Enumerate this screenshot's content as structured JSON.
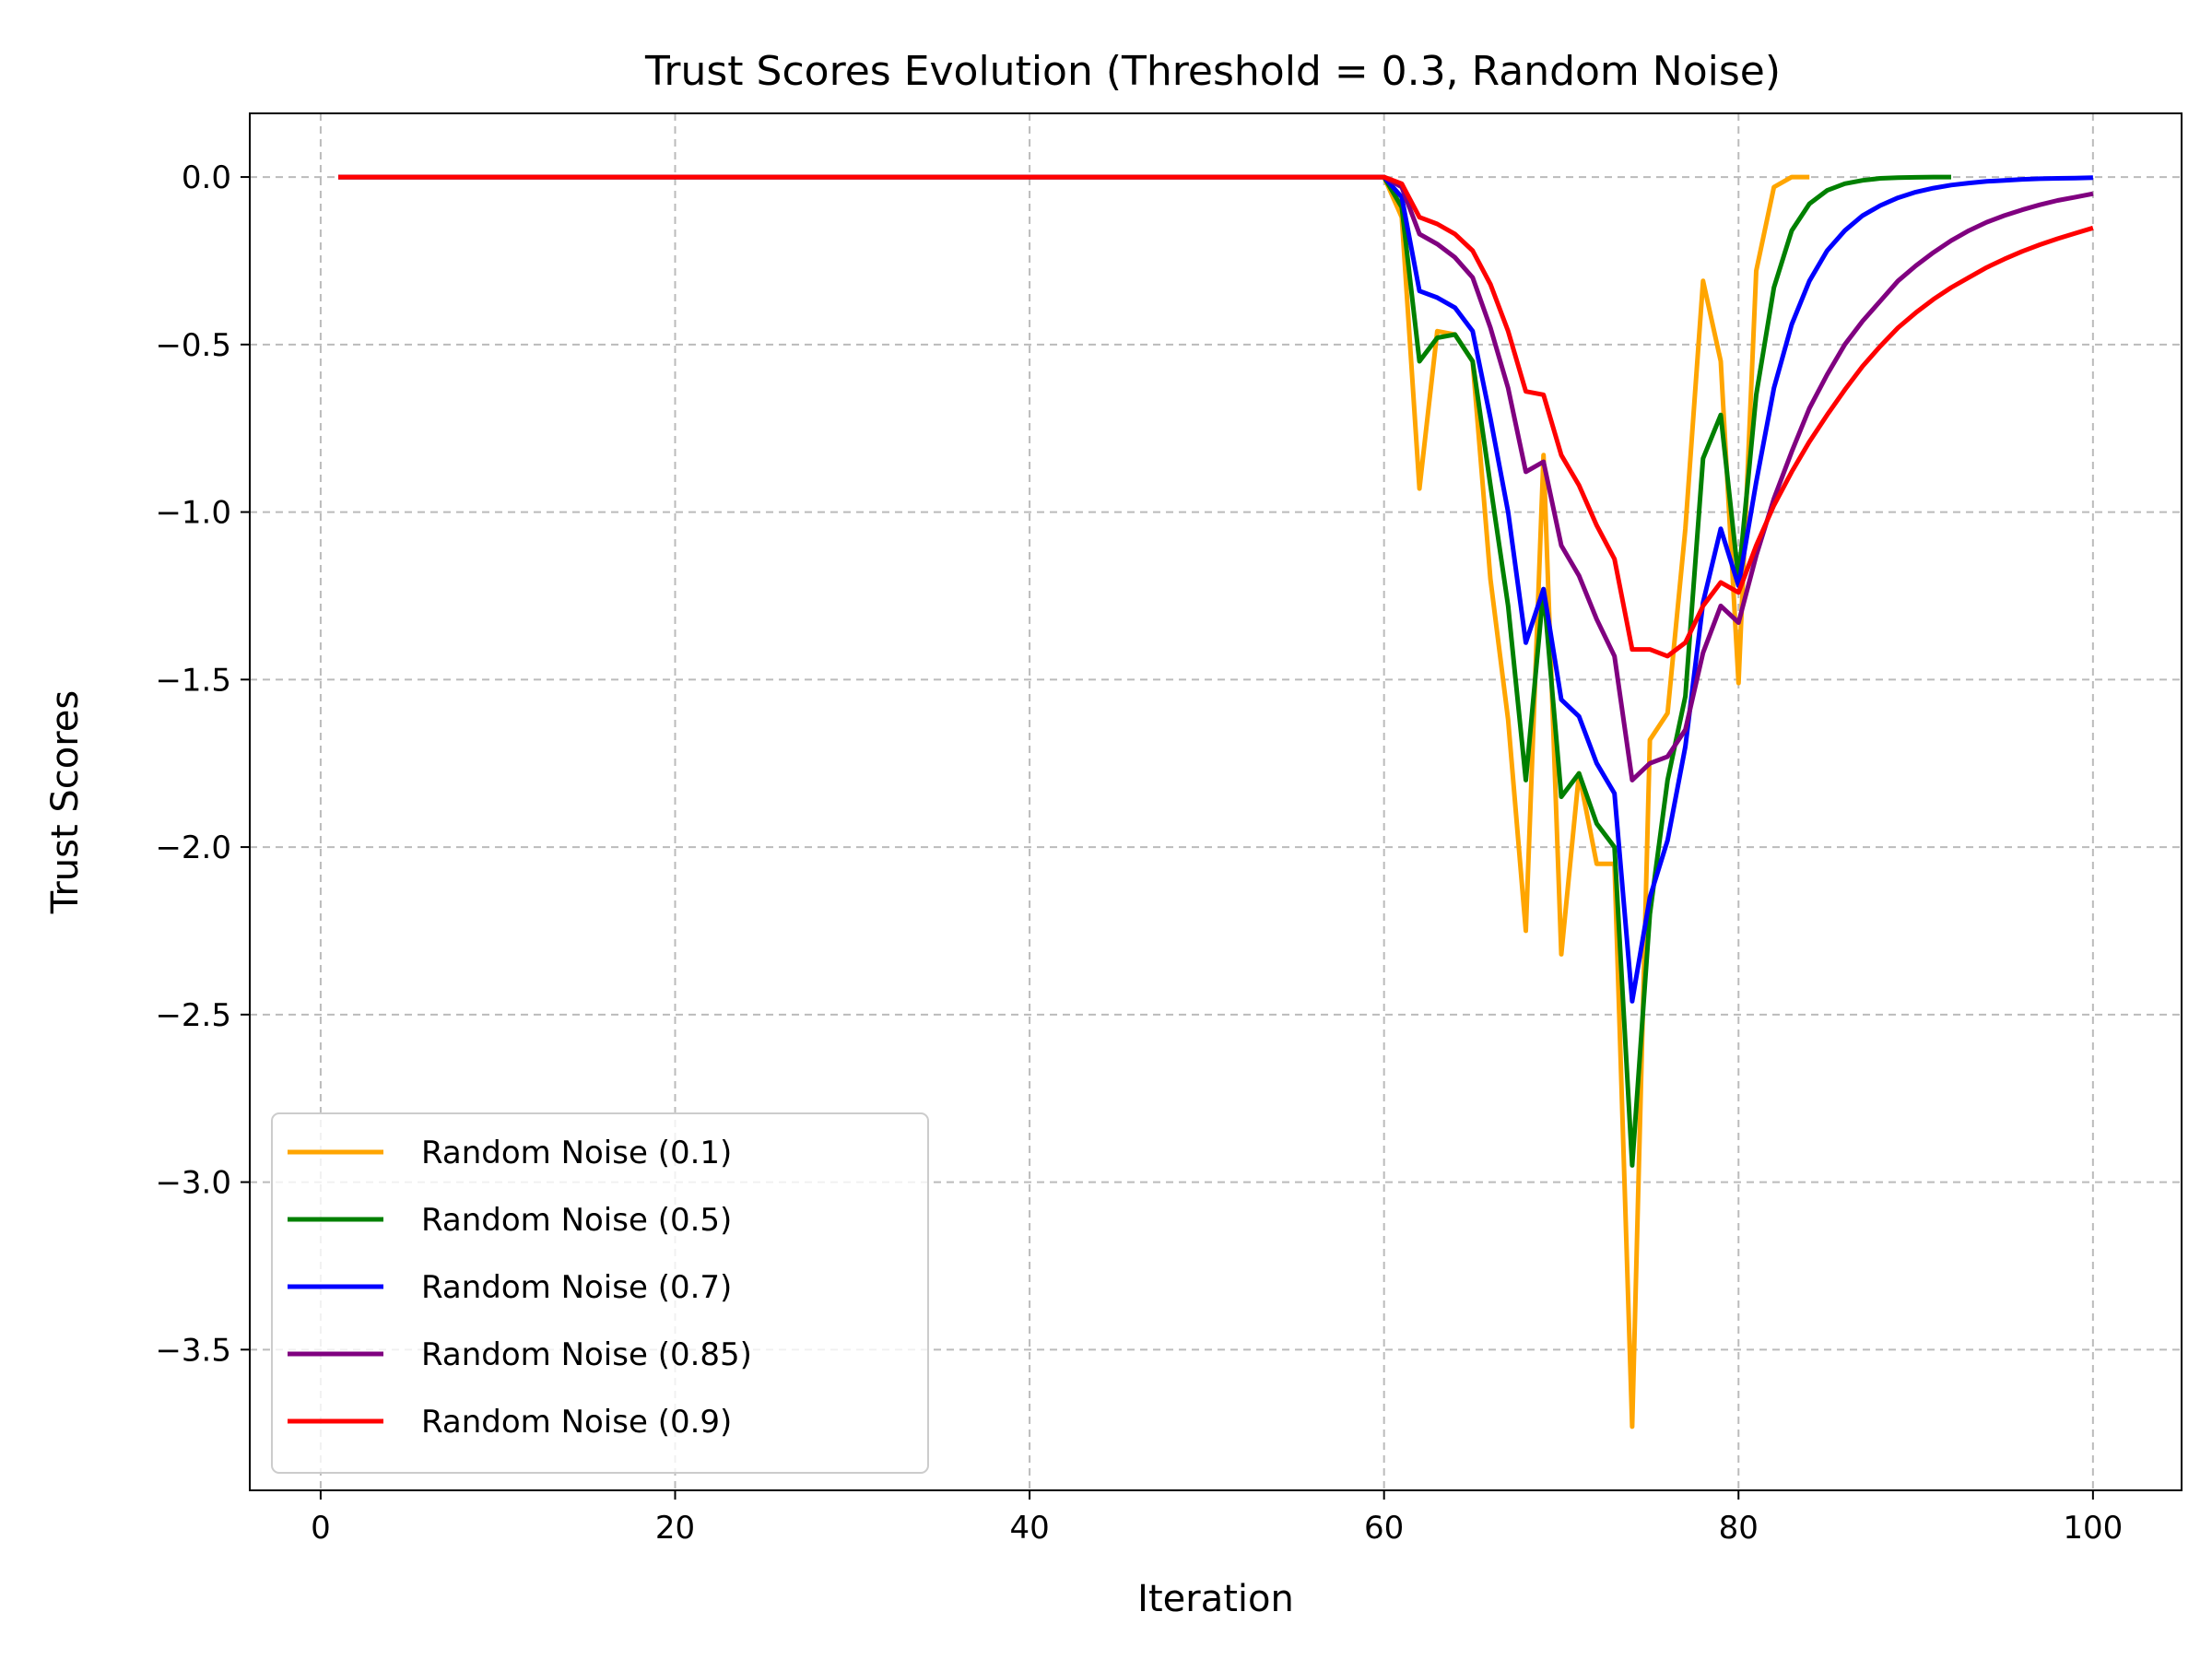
{
  "chart_data": {
    "type": "line",
    "title": "Trust Scores Evolution (Threshold = 0.3, Random Noise)",
    "xlabel": "Iteration",
    "ylabel": "Trust Scores",
    "xlim": [
      -4,
      105
    ],
    "ylim": [
      -3.92,
      0.19
    ],
    "xticks": [
      0,
      20,
      40,
      60,
      80,
      100
    ],
    "yticks": [
      0.0,
      -0.5,
      -1.0,
      -1.5,
      -2.0,
      -2.5,
      -3.0,
      -3.5
    ],
    "xtick_labels": [
      "0",
      "20",
      "40",
      "60",
      "80",
      "100"
    ],
    "ytick_labels": [
      "0.0",
      "−0.5",
      "−1.0",
      "−1.5",
      "−2.0",
      "−2.5",
      "−3.0",
      "−3.5"
    ],
    "grid": true,
    "legend_position": "lower-left",
    "series": [
      {
        "name": "Random Noise (0.1)",
        "color": "#ffa500",
        "x": [
          1,
          60,
          61,
          62,
          63,
          64,
          65,
          66,
          67,
          68,
          69,
          70,
          71,
          72,
          73,
          74,
          75,
          76,
          77,
          78,
          79,
          80,
          81,
          82,
          83,
          84
        ],
        "y": [
          0,
          0,
          -0.12,
          -0.93,
          -0.46,
          -0.47,
          -0.55,
          -1.2,
          -1.62,
          -2.25,
          -0.83,
          -2.32,
          -1.78,
          -2.05,
          -2.05,
          -3.73,
          -1.68,
          -1.6,
          -1.05,
          -0.31,
          -0.55,
          -1.51,
          -0.28,
          -0.03,
          0,
          0
        ]
      },
      {
        "name": "Random Noise (0.5)",
        "color": "#008000",
        "x": [
          1,
          60,
          61,
          62,
          63,
          64,
          65,
          66,
          67,
          68,
          69,
          70,
          71,
          72,
          73,
          74,
          75,
          76,
          77,
          78,
          79,
          80,
          81,
          82,
          83,
          84,
          85,
          86,
          87,
          88,
          89,
          90,
          91,
          92
        ],
        "y": [
          0,
          0,
          -0.09,
          -0.55,
          -0.48,
          -0.47,
          -0.55,
          -0.92,
          -1.28,
          -1.8,
          -1.23,
          -1.85,
          -1.78,
          -1.93,
          -2.0,
          -2.95,
          -2.2,
          -1.8,
          -1.55,
          -0.84,
          -0.71,
          -1.2,
          -0.65,
          -0.33,
          -0.16,
          -0.08,
          -0.04,
          -0.02,
          -0.01,
          -0.004,
          -0.002,
          -0.001,
          0,
          0
        ]
      },
      {
        "name": "Random Noise (0.7)",
        "color": "#0000ff",
        "x": [
          1,
          60,
          61,
          62,
          63,
          64,
          65,
          66,
          67,
          68,
          69,
          70,
          71,
          72,
          73,
          74,
          75,
          76,
          77,
          78,
          79,
          80,
          81,
          82,
          83,
          84,
          85,
          86,
          87,
          88,
          89,
          90,
          91,
          92,
          93,
          94,
          95,
          96,
          97,
          98,
          99,
          100
        ],
        "y": [
          0,
          0,
          -0.06,
          -0.34,
          -0.36,
          -0.39,
          -0.46,
          -0.72,
          -1.0,
          -1.39,
          -1.23,
          -1.56,
          -1.61,
          -1.75,
          -1.84,
          -2.46,
          -2.15,
          -1.98,
          -1.7,
          -1.27,
          -1.05,
          -1.22,
          -0.91,
          -0.63,
          -0.44,
          -0.31,
          -0.22,
          -0.16,
          -0.115,
          -0.085,
          -0.062,
          -0.045,
          -0.033,
          -0.024,
          -0.018,
          -0.013,
          -0.01,
          -0.007,
          -0.005,
          -0.004,
          -0.003,
          -0.002
        ]
      },
      {
        "name": "Random Noise (0.85)",
        "color": "#800080",
        "x": [
          1,
          60,
          61,
          62,
          63,
          64,
          65,
          66,
          67,
          68,
          69,
          70,
          71,
          72,
          73,
          74,
          75,
          76,
          77,
          78,
          79,
          80,
          81,
          82,
          83,
          84,
          85,
          86,
          87,
          88,
          89,
          90,
          91,
          92,
          93,
          94,
          95,
          96,
          97,
          98,
          99,
          100
        ],
        "y": [
          0,
          0,
          -0.03,
          -0.17,
          -0.2,
          -0.24,
          -0.3,
          -0.45,
          -0.63,
          -0.88,
          -0.85,
          -1.1,
          -1.19,
          -1.32,
          -1.43,
          -1.8,
          -1.75,
          -1.73,
          -1.65,
          -1.42,
          -1.28,
          -1.33,
          -1.13,
          -0.96,
          -0.82,
          -0.69,
          -0.59,
          -0.5,
          -0.43,
          -0.37,
          -0.31,
          -0.265,
          -0.225,
          -0.19,
          -0.16,
          -0.135,
          -0.115,
          -0.098,
          -0.083,
          -0.07,
          -0.06,
          -0.05
        ]
      },
      {
        "name": "Random Noise (0.9)",
        "color": "#ff0000",
        "x": [
          1,
          60,
          61,
          62,
          63,
          64,
          65,
          66,
          67,
          68,
          69,
          70,
          71,
          72,
          73,
          74,
          75,
          76,
          77,
          78,
          79,
          80,
          81,
          82,
          83,
          84,
          85,
          86,
          87,
          88,
          89,
          90,
          91,
          92,
          93,
          94,
          95,
          96,
          97,
          98,
          99,
          100
        ],
        "y": [
          0,
          0,
          -0.02,
          -0.12,
          -0.14,
          -0.17,
          -0.22,
          -0.32,
          -0.46,
          -0.64,
          -0.65,
          -0.83,
          -0.92,
          -1.04,
          -1.14,
          -1.41,
          -1.41,
          -1.43,
          -1.39,
          -1.28,
          -1.21,
          -1.24,
          -1.1,
          -0.98,
          -0.88,
          -0.79,
          -0.71,
          -0.635,
          -0.565,
          -0.505,
          -0.45,
          -0.405,
          -0.365,
          -0.33,
          -0.3,
          -0.27,
          -0.245,
          -0.222,
          -0.202,
          -0.184,
          -0.168,
          -0.152
        ]
      }
    ]
  }
}
